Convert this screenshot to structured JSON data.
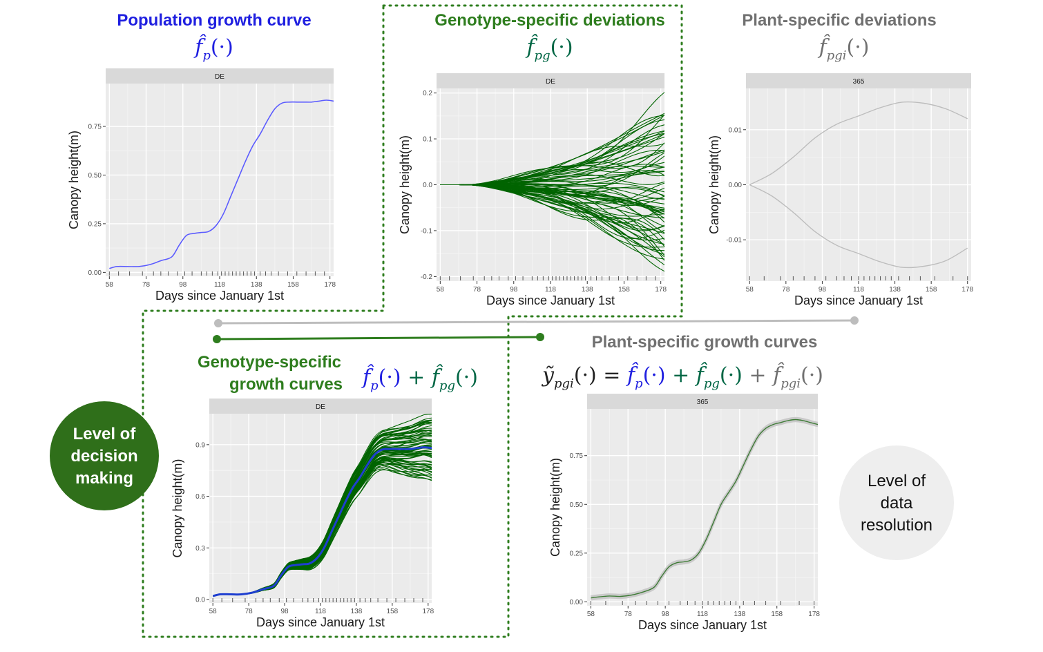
{
  "colors": {
    "population": "#1f1fe0",
    "genotype": "#2e7d1e",
    "genotype_line": "#006400",
    "plant": "#707070",
    "plant_line": "#bdbdbd",
    "dark_green_circle": "#2f6f1a",
    "light_circle": "#eeeeee",
    "panel_bg": "#ebebeb",
    "strip_bg": "#d9d9d9",
    "blue_line": "#5b5bff",
    "genotype_mean": "#1f3fd0"
  },
  "headers": {
    "population": {
      "title": "Population growth curve",
      "formula_base": "f̂",
      "formula_sub": "p",
      "formula_args": "(·)"
    },
    "genotype_dev": {
      "title": "Genotype-specific deviations",
      "formula_base": "f̂",
      "formula_sub": "pg",
      "formula_args": "(·)"
    },
    "plant_dev": {
      "title": "Plant-specific deviations",
      "formula_base": "f̂",
      "formula_sub": "pgi",
      "formula_args": "(·)"
    },
    "genotype_curves": {
      "title_line1": "Genotype-specific",
      "title_line2": "growth curves"
    },
    "plant_curves": {
      "title": "Plant-specific growth curves",
      "lhs_base": "ỹ",
      "lhs_sub": "pgi",
      "lhs_args": "(·) ="
    }
  },
  "circles": {
    "decision": [
      "Level of",
      "decision",
      "making"
    ],
    "resolution": [
      "Level of",
      "data",
      "resolution"
    ]
  },
  "chart_data": [
    {
      "id": "population",
      "type": "line",
      "strip": "DE",
      "xlabel": "Days since January 1st",
      "ylabel": "Canopy height(m)",
      "xlim": [
        56,
        180
      ],
      "ylim": [
        -0.02,
        0.97
      ],
      "xticks": [
        58,
        78,
        98,
        118,
        138,
        158,
        178
      ],
      "yticks": [
        0.0,
        0.25,
        0.5,
        0.75
      ],
      "ytick_labels": [
        "0.00",
        "0.25",
        "0.50",
        "0.75"
      ],
      "rug": [
        58,
        63,
        69,
        76,
        82,
        86,
        90,
        95,
        99,
        103,
        108,
        111,
        114,
        117,
        119,
        121,
        123,
        125,
        127,
        129,
        131,
        133,
        135,
        137,
        140,
        143,
        146,
        150,
        155,
        160,
        165,
        170,
        175
      ],
      "series": [
        {
          "x": [
            58,
            62,
            68,
            74,
            80,
            86,
            92,
            96,
            100,
            104,
            108,
            112,
            116,
            120,
            124,
            128,
            132,
            136,
            140,
            144,
            148,
            152,
            156,
            160,
            164,
            168,
            172,
            176,
            180
          ],
          "y": [
            0.02,
            0.03,
            0.03,
            0.03,
            0.04,
            0.06,
            0.08,
            0.14,
            0.19,
            0.2,
            0.205,
            0.21,
            0.24,
            0.3,
            0.39,
            0.48,
            0.57,
            0.65,
            0.71,
            0.78,
            0.84,
            0.87,
            0.875,
            0.875,
            0.875,
            0.875,
            0.88,
            0.885,
            0.88
          ]
        }
      ]
    },
    {
      "id": "genotype_dev",
      "type": "line",
      "strip": "DE",
      "xlabel": "Days since January 1st",
      "ylabel": "Canopy height(m)",
      "xlim": [
        56,
        180
      ],
      "ylim": [
        -0.21,
        0.21
      ],
      "xticks": [
        58,
        78,
        98,
        118,
        138,
        158,
        178
      ],
      "yticks": [
        -0.2,
        -0.1,
        0.0,
        0.1,
        0.2
      ],
      "ytick_labels": [
        "-0.2",
        "-0.1",
        "0.0",
        "0.1",
        "0.2"
      ],
      "rug": [
        58,
        63,
        69,
        76,
        82,
        86,
        90,
        95,
        99,
        103,
        108,
        111,
        114,
        117,
        119,
        121,
        123,
        125,
        127,
        129,
        131,
        133,
        135,
        137,
        140,
        143,
        146,
        150,
        155,
        160,
        165,
        170,
        175
      ],
      "series_summary": {
        "count": 70,
        "shape": "deviations start at 0.0 on day 58, fan out from about day 80, ending between -0.2 and 0.17 on day 180"
      }
    },
    {
      "id": "plant_dev",
      "type": "line",
      "strip": "365",
      "xlabel": "Days since January 1st",
      "ylabel": "Canopy height(m)",
      "xlim": [
        56,
        180
      ],
      "ylim": [
        -0.0175,
        0.0175
      ],
      "xticks": [
        58,
        78,
        98,
        118,
        138,
        158,
        178
      ],
      "yticks": [
        -0.01,
        0.0,
        0.01
      ],
      "ytick_labels": [
        "-0.01",
        "0.00",
        "0.01"
      ],
      "rug": [
        58,
        66,
        75,
        82,
        88,
        94,
        100,
        106,
        110,
        114,
        118,
        121,
        124,
        127,
        130,
        133,
        136,
        140,
        146,
        152,
        160,
        170,
        178
      ],
      "series": [
        {
          "x": [
            58,
            70,
            82,
            94,
            106,
            118,
            130,
            142,
            154,
            166,
            178
          ],
          "y": [
            0.0,
            0.002,
            0.005,
            0.0085,
            0.011,
            0.0125,
            0.014,
            0.015,
            0.0148,
            0.0138,
            0.012
          ]
        },
        {
          "x": [
            58,
            70,
            82,
            94,
            106,
            118,
            130,
            142,
            154,
            166,
            178
          ],
          "y": [
            0.0,
            -0.002,
            -0.005,
            -0.0085,
            -0.011,
            -0.0125,
            -0.014,
            -0.015,
            -0.0148,
            -0.0138,
            -0.0115
          ]
        }
      ]
    },
    {
      "id": "genotype_curves",
      "type": "line",
      "strip": "DE",
      "xlabel": "Days since January 1st",
      "ylabel": "Canopy height(m)",
      "xlim": [
        56,
        180
      ],
      "ylim": [
        -0.02,
        1.08
      ],
      "xticks": [
        58,
        78,
        98,
        118,
        138,
        158,
        178
      ],
      "yticks": [
        0.0,
        0.3,
        0.6,
        0.9
      ],
      "ytick_labels": [
        "0.0",
        "0.3",
        "0.6",
        "0.9"
      ],
      "rug": [
        58,
        63,
        69,
        76,
        82,
        86,
        90,
        95,
        99,
        103,
        108,
        111,
        114,
        117,
        119,
        121,
        123,
        125,
        127,
        129,
        131,
        133,
        135,
        137,
        140,
        143,
        146,
        150,
        155,
        160,
        165,
        170,
        175
      ],
      "series_summary": {
        "count": 70,
        "shape": "population curve plus genotype deviations; thick blue mean curve equals the population growth curve"
      }
    },
    {
      "id": "plant_curves",
      "type": "line",
      "strip": "365",
      "xlabel": "Days since January 1st",
      "ylabel": "Canopy height(m)",
      "xlim": [
        56,
        180
      ],
      "ylim": [
        -0.02,
        0.99
      ],
      "xticks": [
        58,
        78,
        98,
        118,
        138,
        158,
        178
      ],
      "yticks": [
        0.0,
        0.25,
        0.5,
        0.75
      ],
      "ytick_labels": [
        "0.00",
        "0.25",
        "0.50",
        "0.75"
      ],
      "rug": [
        58,
        66,
        75,
        82,
        88,
        94,
        100,
        106,
        110,
        114,
        118,
        121,
        124,
        127,
        130,
        133,
        136,
        140,
        146,
        152,
        160,
        170,
        178
      ],
      "series": [
        {
          "x": [
            58,
            62,
            68,
            74,
            80,
            86,
            92,
            96,
            100,
            104,
            108,
            112,
            116,
            120,
            124,
            128,
            132,
            136,
            140,
            144,
            148,
            152,
            156,
            160,
            164,
            168,
            172,
            176,
            180
          ],
          "y": [
            0.02,
            0.025,
            0.03,
            0.028,
            0.035,
            0.05,
            0.075,
            0.13,
            0.18,
            0.2,
            0.205,
            0.215,
            0.25,
            0.32,
            0.41,
            0.5,
            0.56,
            0.62,
            0.7,
            0.78,
            0.85,
            0.89,
            0.91,
            0.92,
            0.93,
            0.935,
            0.93,
            0.92,
            0.91
          ]
        }
      ]
    }
  ]
}
